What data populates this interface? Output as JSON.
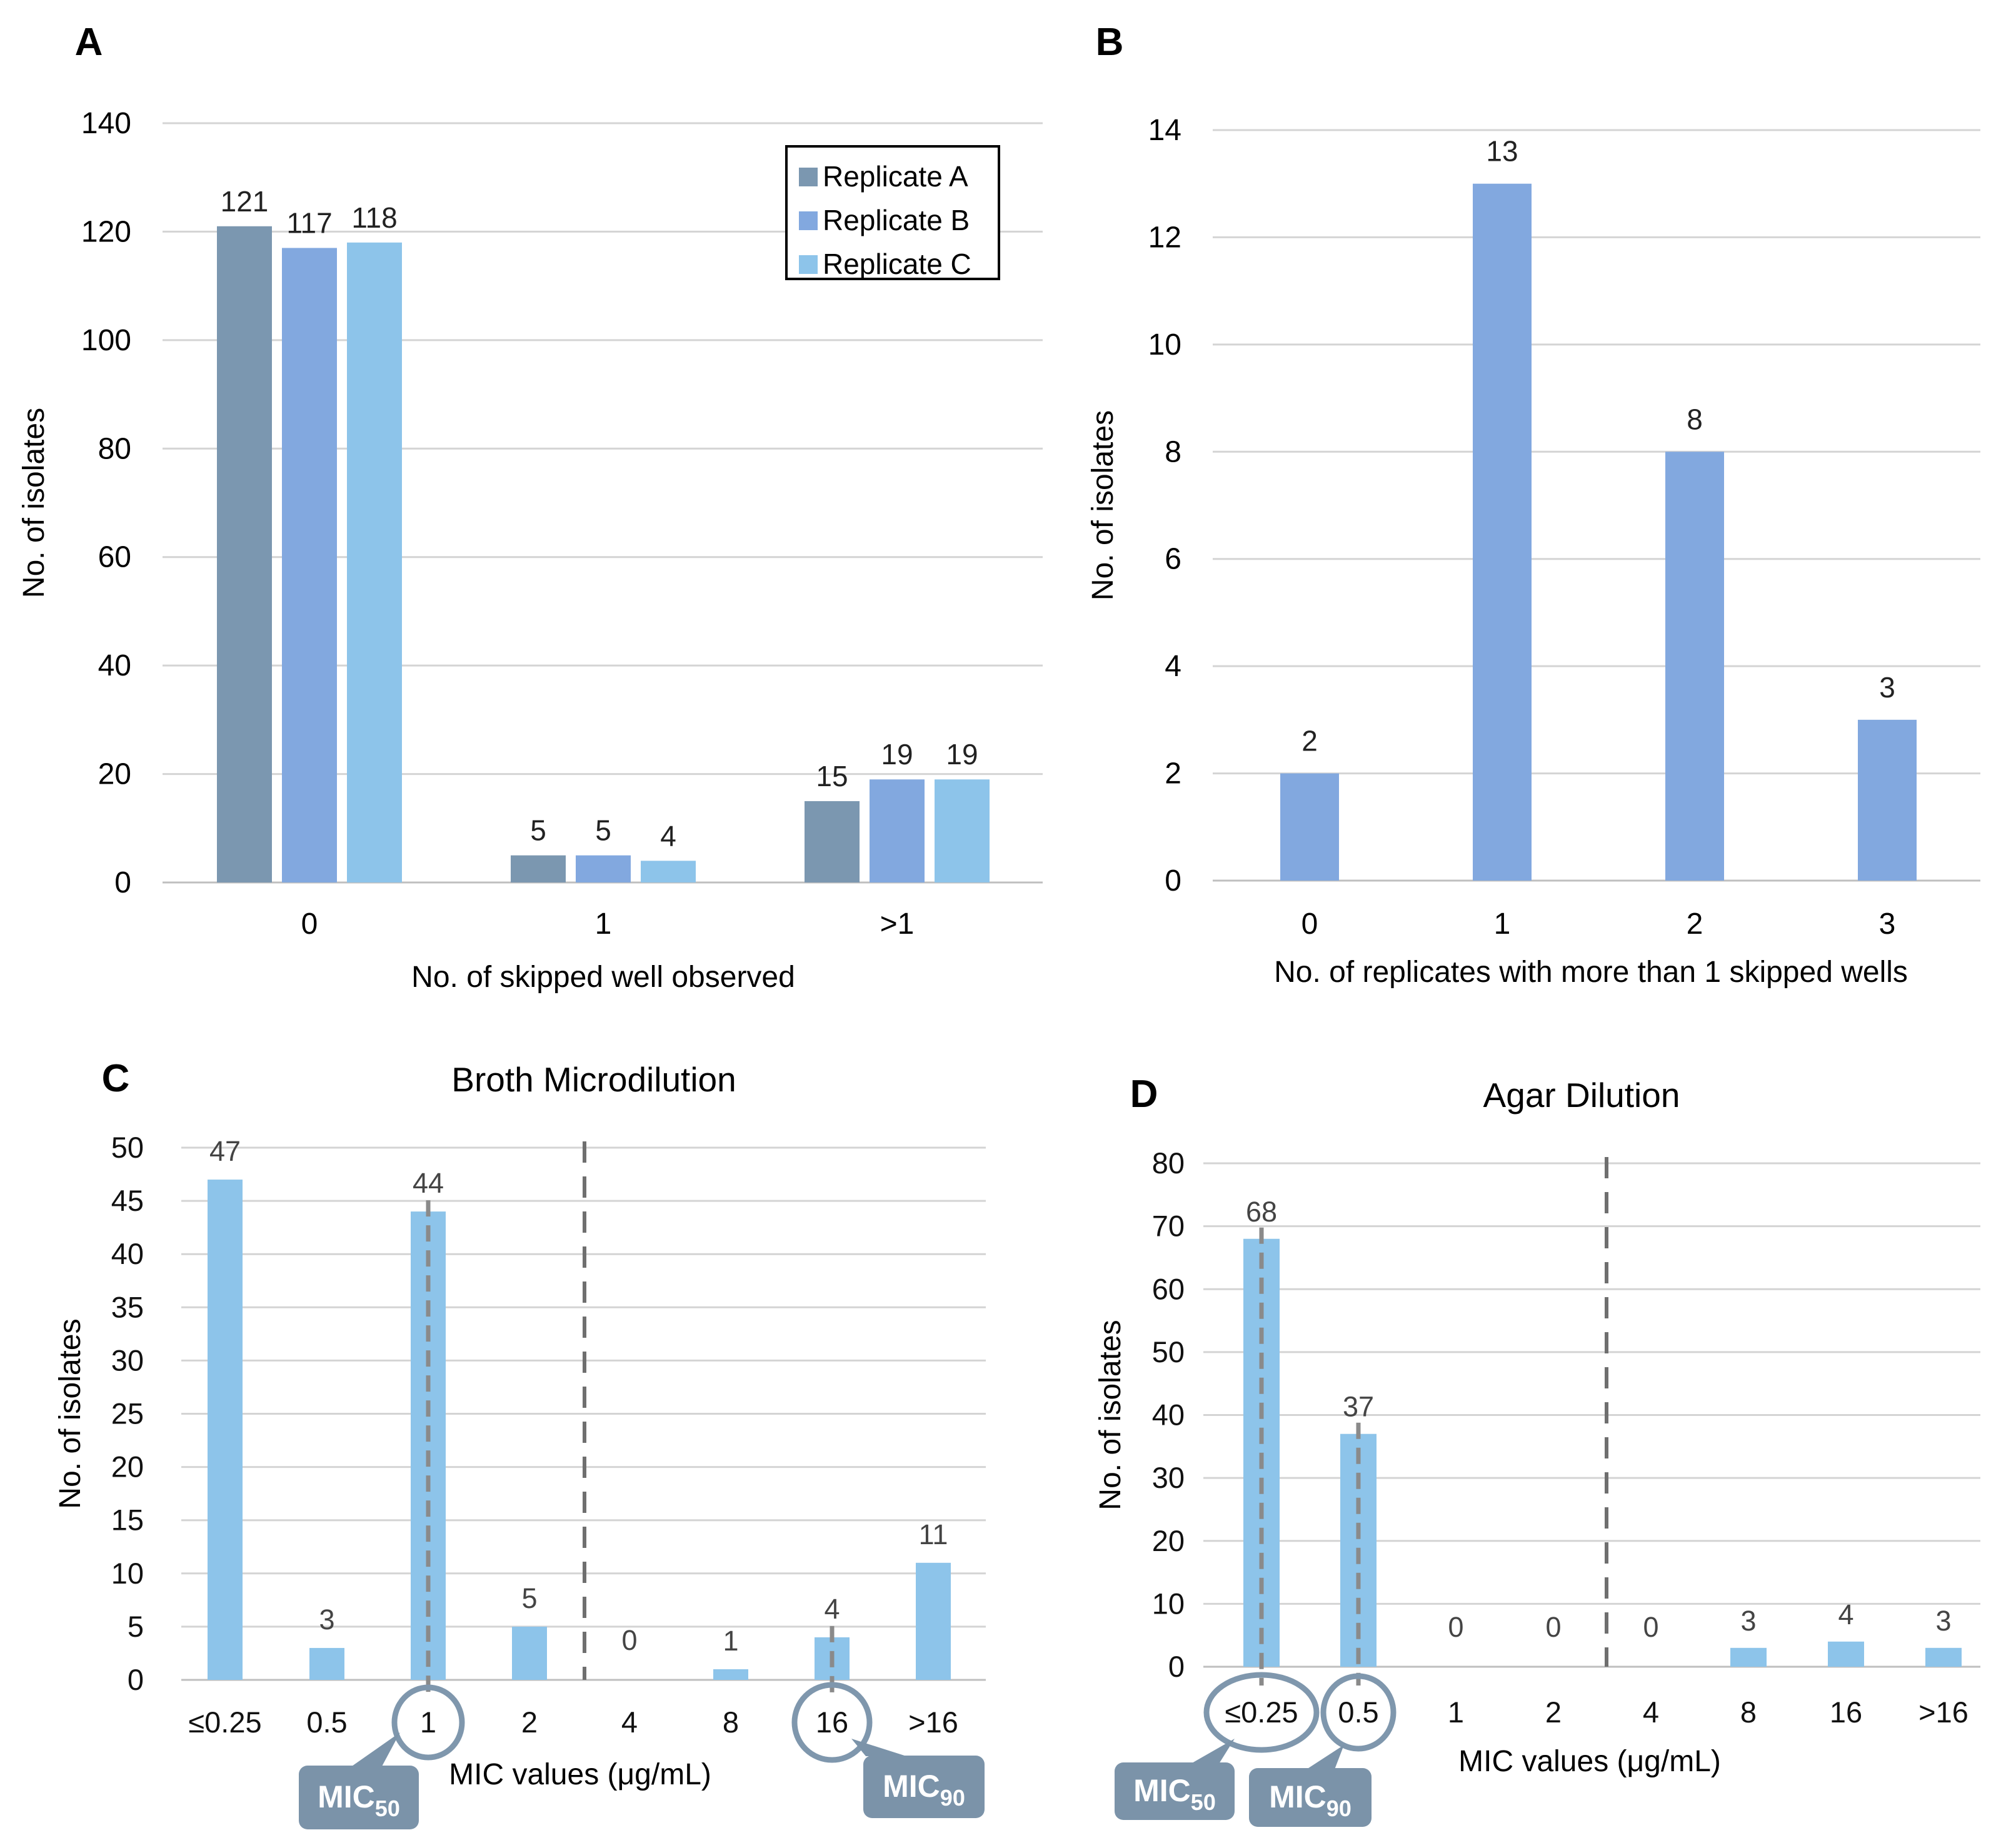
{
  "chart_data": [
    {
      "panel": "A",
      "type": "bar",
      "title": "",
      "xlabel": "No. of skipped well observed",
      "ylabel": "No. of isolates",
      "categories": [
        "0",
        "1",
        ">1"
      ],
      "ylim": [
        0,
        140
      ],
      "yticks": [
        "0",
        "20",
        "40",
        "60",
        "80",
        "100",
        "120",
        "140"
      ],
      "grid": true,
      "legend": "top-right",
      "series": [
        {
          "name": "Replicate A",
          "color": "#7b97b0",
          "values": [
            121,
            5,
            15
          ]
        },
        {
          "name": "Replicate B",
          "color": "#82a8df",
          "values": [
            117,
            5,
            19
          ]
        },
        {
          "name": "Replicate C",
          "color": "#8dc4ea",
          "values": [
            118,
            4,
            19
          ]
        }
      ]
    },
    {
      "panel": "B",
      "type": "bar",
      "title": "",
      "xlabel": "No. of replicates with more than 1 skipped wells",
      "ylabel": "No. of isolates",
      "categories": [
        "0",
        "1",
        "2",
        "3"
      ],
      "ylim": [
        0,
        14
      ],
      "yticks": [
        "0",
        "2",
        "4",
        "6",
        "8",
        "10",
        "12",
        "14"
      ],
      "grid": true,
      "color": "#82a8df",
      "values": [
        2,
        13,
        8,
        3
      ]
    },
    {
      "panel": "C",
      "type": "bar",
      "title": "Broth Microdilution",
      "xlabel": "MIC values (μg/mL)",
      "ylabel": "No. of isolates",
      "categories": [
        "≤0.25",
        "0.5",
        "1",
        "2",
        "4",
        "8",
        "16",
        ">16"
      ],
      "ylim": [
        0,
        50
      ],
      "yticks": [
        "0",
        "5",
        "10",
        "15",
        "20",
        "25",
        "30",
        "35",
        "40",
        "45",
        "50"
      ],
      "grid": true,
      "color": "#8dc4ea",
      "values": [
        47,
        3,
        44,
        5,
        0,
        1,
        4,
        11
      ],
      "mic50": {
        "category": "1",
        "label": "MIC",
        "sub": "50"
      },
      "mic90": {
        "category": "16",
        "label": "MIC",
        "sub": "90"
      },
      "breakpoint_between": [
        "2",
        "4"
      ]
    },
    {
      "panel": "D",
      "type": "bar",
      "title": "Agar Dilution",
      "xlabel": "MIC values (μg/mL)",
      "ylabel": "No.  of isolates",
      "categories": [
        "≤0.25",
        "0.5",
        "1",
        "2",
        "4",
        "8",
        "16",
        ">16"
      ],
      "ylim": [
        0,
        80
      ],
      "yticks": [
        "0",
        "10",
        "20",
        "30",
        "40",
        "50",
        "60",
        "70",
        "80"
      ],
      "grid": true,
      "color": "#8dc4ea",
      "values": [
        68,
        37,
        0,
        0,
        0,
        3,
        4,
        3
      ],
      "mic50": {
        "category": "≤0.25",
        "label": "MIC",
        "sub": "50"
      },
      "mic90": {
        "category": "0.5",
        "label": "MIC",
        "sub": "90"
      },
      "breakpoint_between": [
        "2",
        "4"
      ]
    }
  ]
}
